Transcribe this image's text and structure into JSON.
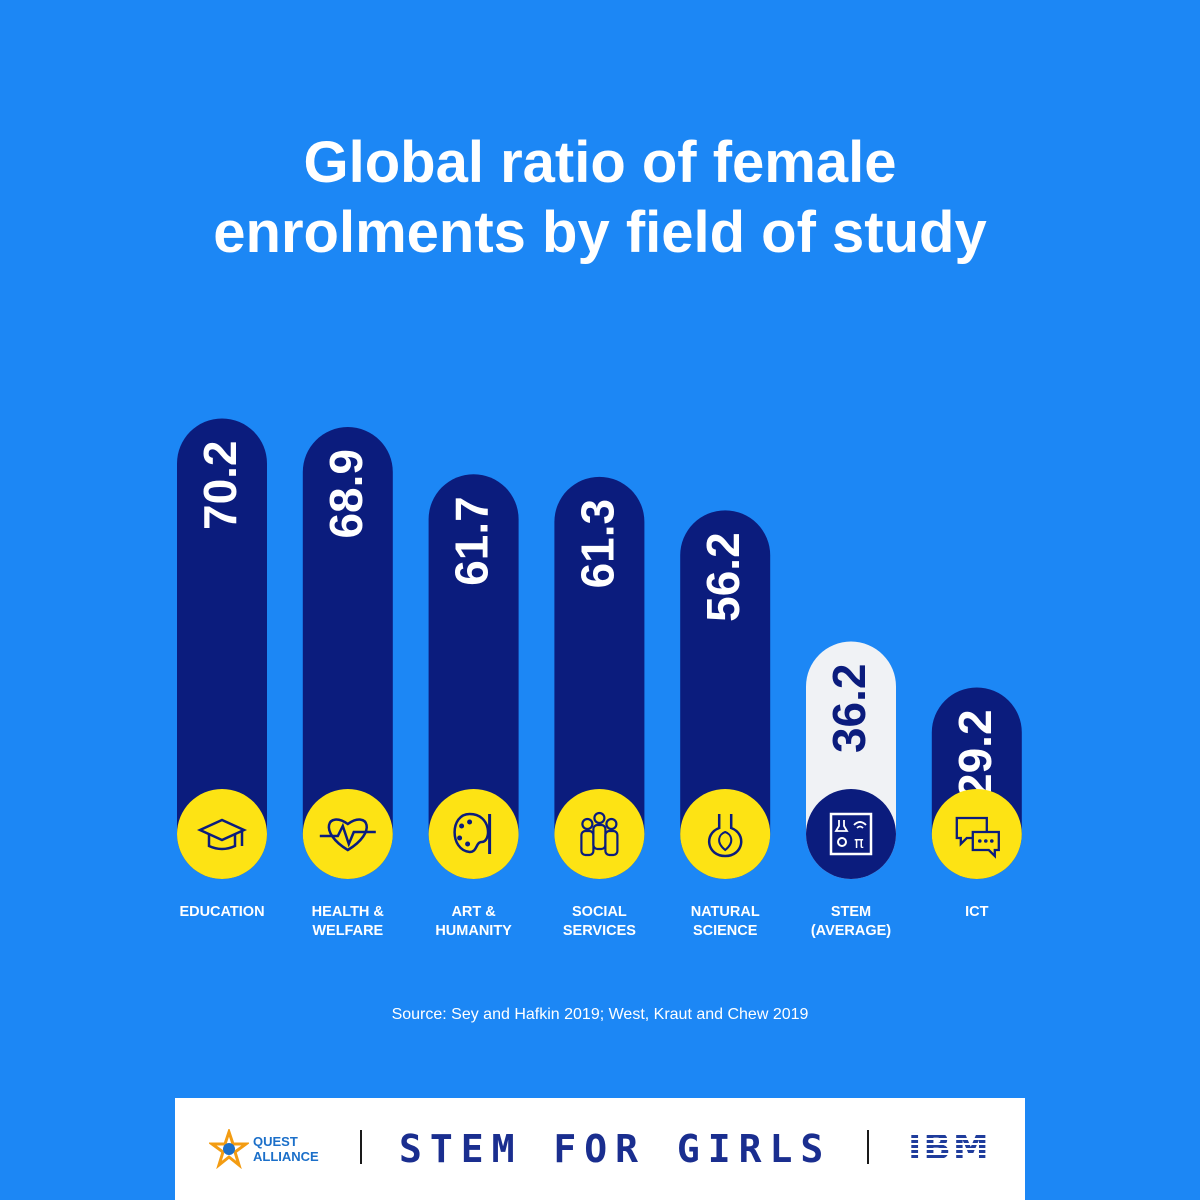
{
  "title_line1": "Global ratio of female",
  "title_line2": "enrolments by field of study",
  "source": "Source: Sey and Hafkin 2019; West, Kraut and Chew 2019",
  "colors": {
    "background": "#1c87f5",
    "bar": "#0b1c7d",
    "highlight_bar": "#f0f2f5",
    "icon_circle": "#fde314",
    "label": "#ffffff"
  },
  "chart_data": {
    "type": "bar",
    "categories": [
      [
        "EDUCATION"
      ],
      [
        "HEALTH &",
        "WELFARE"
      ],
      [
        "ART &",
        "HUMANITY"
      ],
      [
        "SOCIAL",
        "SERVICES"
      ],
      [
        "NATURAL",
        "SCIENCE"
      ],
      [
        "STEM",
        "(AVERAGE)"
      ],
      [
        "ICT"
      ]
    ],
    "values": [
      70.2,
      68.9,
      61.7,
      61.3,
      56.2,
      36.2,
      29.2
    ],
    "value_labels": [
      "70.2",
      "68.9",
      "61.7",
      "61.3",
      "56.2",
      "36.2",
      "29.2"
    ],
    "icons": [
      "graduation-cap-icon",
      "heartbeat-icon",
      "palette-icon",
      "people-icon",
      "flask-leaf-icon",
      "stem-board-icon",
      "chat-bubbles-icon"
    ],
    "highlight_index": 5,
    "title": "Global ratio of female enrolments by field of study",
    "xlabel": "",
    "ylabel": "",
    "ylim": [
      0,
      100
    ],
    "grid": false,
    "legend": "none"
  },
  "footer": {
    "quest_line1": "QUEST",
    "quest_line2": "ALLIANCE",
    "stem_for_girls": "STEM FOR GIRLS",
    "ibm": "IBM"
  }
}
